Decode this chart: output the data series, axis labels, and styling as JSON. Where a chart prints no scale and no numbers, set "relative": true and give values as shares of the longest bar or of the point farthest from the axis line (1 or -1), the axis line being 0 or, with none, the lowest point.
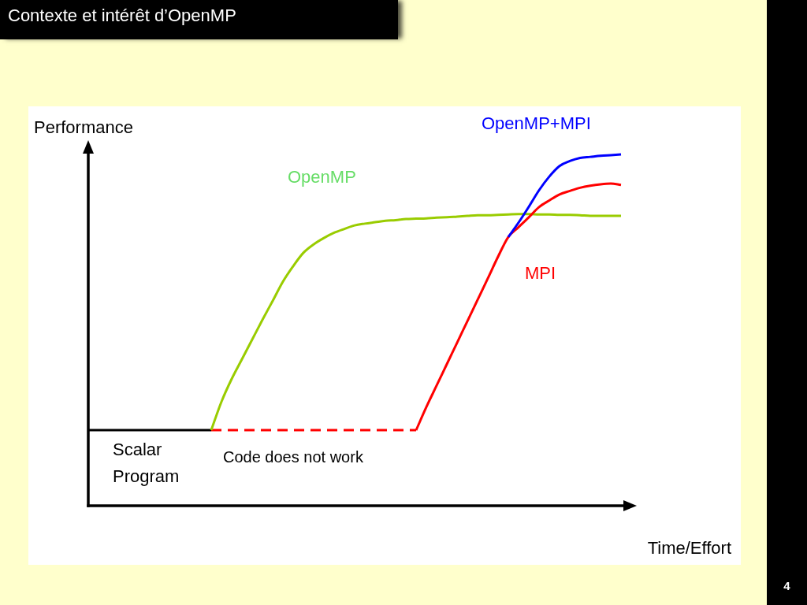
{
  "chart_data": {
    "type": "line",
    "title": "Contexte et intérêt d’OpenMP",
    "xlabel": "Time/Effort",
    "ylabel": "Performance",
    "annotations": [
      {
        "text": "Code does not work",
        "y": 0.215
      },
      "4"
    ],
    "relative": true,
    "marker": "none",
    "line_style": "solid",
    "categories": [
      null,
      null,
      null,
      null,
      null,
      null,
      null,
      null,
      null,
      null,
      null,
      null,
      null,
      null,
      null,
      null,
      null,
      null,
      null,
      null,
      null,
      null,
      null,
      null,
      null,
      null,
      null,
      null,
      null,
      null,
      null,
      null,
      null,
      null,
      null,
      null,
      null,
      null,
      null,
      null,
      null,
      null,
      null,
      null,
      null,
      null,
      null,
      null,
      null,
      null,
      null,
      null,
      null
    ],
    "series": [
      {
        "name": "Scalar Program",
        "color": "#000000",
        "values": [
          0.215,
          0.215,
          0.215,
          0.215,
          0.215,
          0.215,
          0.215,
          0.215,
          0.215,
          0.215,
          0.215,
          0.215,
          0.215,
          null,
          null,
          null,
          null,
          null,
          null,
          null,
          null,
          null,
          null,
          null,
          null,
          null,
          null,
          null,
          null,
          null,
          null,
          null,
          null,
          null,
          null,
          null,
          null,
          null,
          null,
          null,
          null,
          null,
          null,
          null,
          null,
          null,
          null,
          null,
          null,
          null,
          null,
          null,
          null
        ]
      },
      {
        "color": "#ff0000",
        "line_style": "dashed",
        "values": [
          null,
          null,
          null,
          null,
          null,
          null,
          null,
          null,
          null,
          null,
          null,
          null,
          0.215,
          0.215,
          0.215,
          0.215,
          0.215,
          0.215,
          0.215,
          0.215,
          0.215,
          0.215,
          0.215,
          0.215,
          0.215,
          0.215,
          0.215,
          0.215,
          0.215,
          0.215,
          0.215,
          0.215,
          0.215,
          null,
          null,
          null,
          null,
          null,
          null,
          null,
          null,
          null,
          null,
          null,
          null,
          null,
          null,
          null,
          null,
          null,
          null,
          null,
          null
        ]
      },
      {
        "name": "OpenMP",
        "color": "#99cc00",
        "values": [
          null,
          null,
          null,
          null,
          null,
          null,
          null,
          null,
          null,
          null,
          null,
          null,
          0.215,
          0.296,
          0.361,
          0.417,
          0.473,
          0.529,
          0.583,
          0.638,
          0.682,
          0.72,
          0.744,
          0.762,
          0.777,
          0.788,
          0.798,
          0.803,
          0.807,
          0.811,
          0.813,
          0.816,
          0.817,
          0.818,
          0.82,
          0.821,
          0.823,
          0.825,
          0.827,
          0.827,
          0.828,
          0.829,
          0.83,
          0.83,
          0.829,
          0.829,
          0.828,
          0.828,
          0.827,
          0.825,
          0.825,
          0.825,
          0.825
        ]
      },
      {
        "name": "MPI",
        "color": "#ff0000",
        "values": [
          null,
          null,
          null,
          null,
          null,
          null,
          null,
          null,
          null,
          null,
          null,
          null,
          null,
          null,
          null,
          null,
          null,
          null,
          null,
          null,
          null,
          null,
          null,
          null,
          null,
          null,
          null,
          null,
          null,
          null,
          null,
          null,
          0.215,
          0.281,
          0.342,
          0.403,
          0.464,
          0.525,
          0.586,
          0.647,
          0.709,
          0.765,
          0.793,
          0.821,
          0.85,
          0.869,
          0.886,
          0.896,
          0.905,
          0.911,
          0.915,
          0.917,
          0.913
        ]
      },
      {
        "name": "OpenMP+MPI",
        "color": "#0000ff",
        "values": [
          null,
          null,
          null,
          null,
          null,
          null,
          null,
          null,
          null,
          null,
          null,
          null,
          null,
          null,
          null,
          null,
          null,
          null,
          null,
          null,
          null,
          null,
          null,
          null,
          null,
          null,
          null,
          null,
          null,
          null,
          null,
          null,
          null,
          null,
          null,
          null,
          null,
          null,
          null,
          null,
          null,
          0.765,
          0.806,
          0.851,
          0.898,
          0.937,
          0.967,
          0.981,
          0.99,
          0.993,
          0.996,
          0.998,
          1.0
        ]
      }
    ]
  }
}
